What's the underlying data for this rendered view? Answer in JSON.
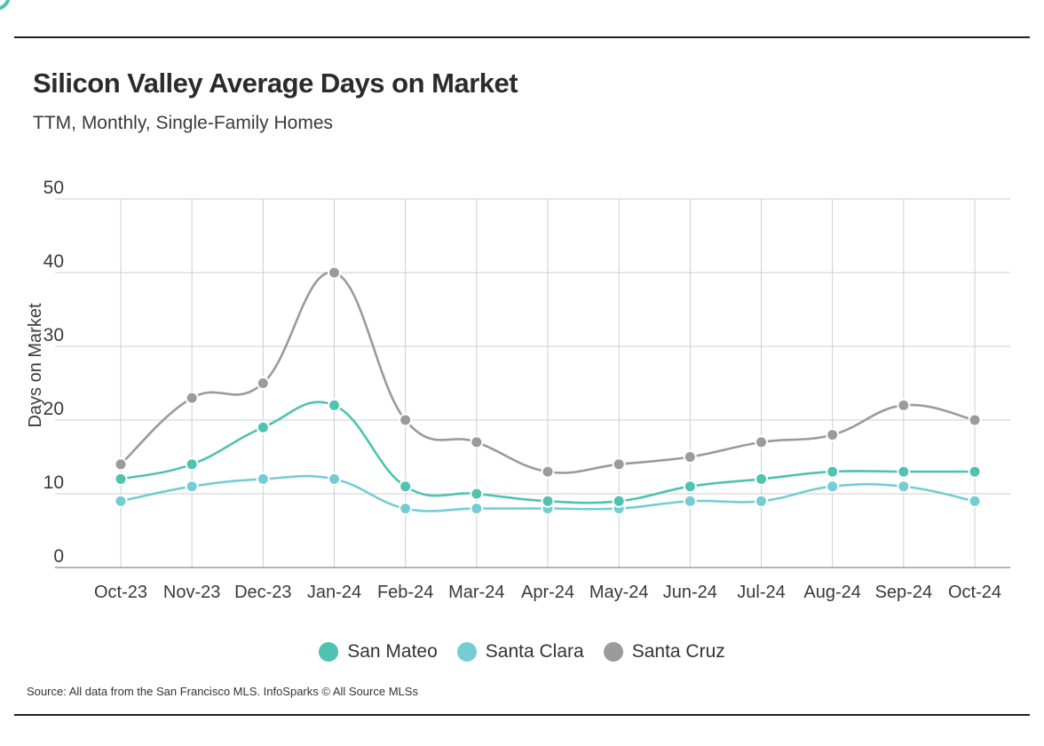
{
  "header": {
    "title": "Silicon Valley Average Days on Market",
    "subtitle": "TTM, Monthly, Single-Family Homes"
  },
  "footer": {
    "source": "Source:  All data from the San Francisco MLS. InfoSparks © All Source MLSs"
  },
  "chart_data": {
    "type": "line",
    "title": "Silicon Valley Average Days on Market",
    "subtitle": "TTM, Monthly, Single-Family Homes",
    "xlabel": "",
    "ylabel": "Days on Market",
    "ylim": [
      0,
      50
    ],
    "yticks": [
      0,
      10,
      20,
      30,
      40,
      50
    ],
    "grid": true,
    "legend_position": "bottom",
    "categories": [
      "Oct-23",
      "Nov-23",
      "Dec-23",
      "Jan-24",
      "Feb-24",
      "Mar-24",
      "Apr-24",
      "May-24",
      "Jun-24",
      "Jul-24",
      "Aug-24",
      "Sep-24",
      "Oct-24"
    ],
    "series": [
      {
        "name": "San Mateo",
        "color": "#4ec3b0",
        "values": [
          12,
          14,
          19,
          22,
          11,
          10,
          9,
          9,
          11,
          12,
          13,
          13,
          13
        ]
      },
      {
        "name": "Santa Clara",
        "color": "#74cdd4",
        "values": [
          9,
          11,
          12,
          12,
          8,
          8,
          8,
          8,
          9,
          9,
          11,
          11,
          9
        ]
      },
      {
        "name": "Santa Cruz",
        "color": "#9b9b9b",
        "values": [
          14,
          23,
          25,
          40,
          20,
          17,
          13,
          14,
          15,
          17,
          18,
          22,
          20
        ]
      }
    ]
  }
}
